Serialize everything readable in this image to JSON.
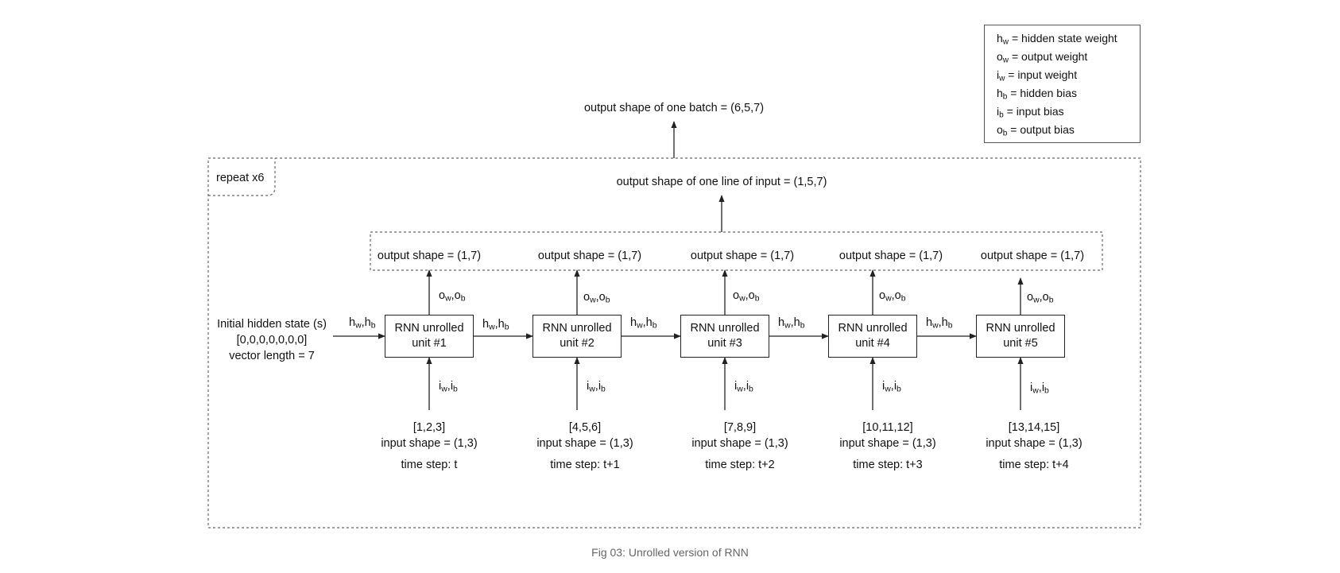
{
  "legend": {
    "items": [
      {
        "sym": "h",
        "sub": "w",
        "text": "= hidden state weight"
      },
      {
        "sym": "o",
        "sub": "w",
        "text": "= output weight"
      },
      {
        "sym": "i",
        "sub": "w",
        "text": "= input weight"
      },
      {
        "sym": "h",
        "sub": "b",
        "text": "= hidden bias"
      },
      {
        "sym": "i",
        "sub": "b",
        "text": "= input bias"
      },
      {
        "sym": "o",
        "sub": "b",
        "text": "= output bias"
      }
    ]
  },
  "batch_output": "output shape of one batch = (6,5,7)",
  "repeat_label": "repeat x6",
  "line_output": "output shape of one line of input  = (1,5,7)",
  "initial_state": {
    "line1": "Initial hidden state (s)",
    "line2": "[0,0,0,0,0,0,0]",
    "line3": "vector length = 7"
  },
  "hidden_label": {
    "a": "h",
    "asub": "w",
    "sep": ",",
    "b": "h",
    "bsub": "b"
  },
  "out_weight_label": {
    "a": "o",
    "asub": "w",
    "sep": ",",
    "b": "o",
    "bsub": "b"
  },
  "in_weight_label": {
    "a": "i",
    "asub": "w",
    "sep": ",",
    "b": "i",
    "bsub": "b"
  },
  "units": [
    {
      "line1": "RNN unrolled",
      "line2": "unit #1",
      "output": "output shape = (1,7)",
      "input": "[1,2,3]",
      "input_shape": "input shape = (1,3)",
      "time": "time step: t"
    },
    {
      "line1": "RNN unrolled",
      "line2": "unit #2",
      "output": "output shape = (1,7)",
      "input": "[4,5,6]",
      "input_shape": "input shape = (1,3)",
      "time": "time step: t+1"
    },
    {
      "line1": "RNN unrolled",
      "line2": "unit #3",
      "output": "output shape = (1,7)",
      "input": "[7,8,9]",
      "input_shape": "input shape = (1,3)",
      "time": "time step: t+2"
    },
    {
      "line1": "RNN unrolled",
      "line2": "unit #4",
      "output": "output shape = (1,7)",
      "input": "[10,11,12]",
      "input_shape": "input shape = (1,3)",
      "time": "time step: t+3"
    },
    {
      "line1": "RNN unrolled",
      "line2": "unit #5",
      "output": "output shape = (1,7)",
      "input": "[13,14,15]",
      "input_shape": "input shape = (1,3)",
      "time": "time step: t+4"
    }
  ],
  "caption": "Fig 03: Unrolled version of RNN"
}
